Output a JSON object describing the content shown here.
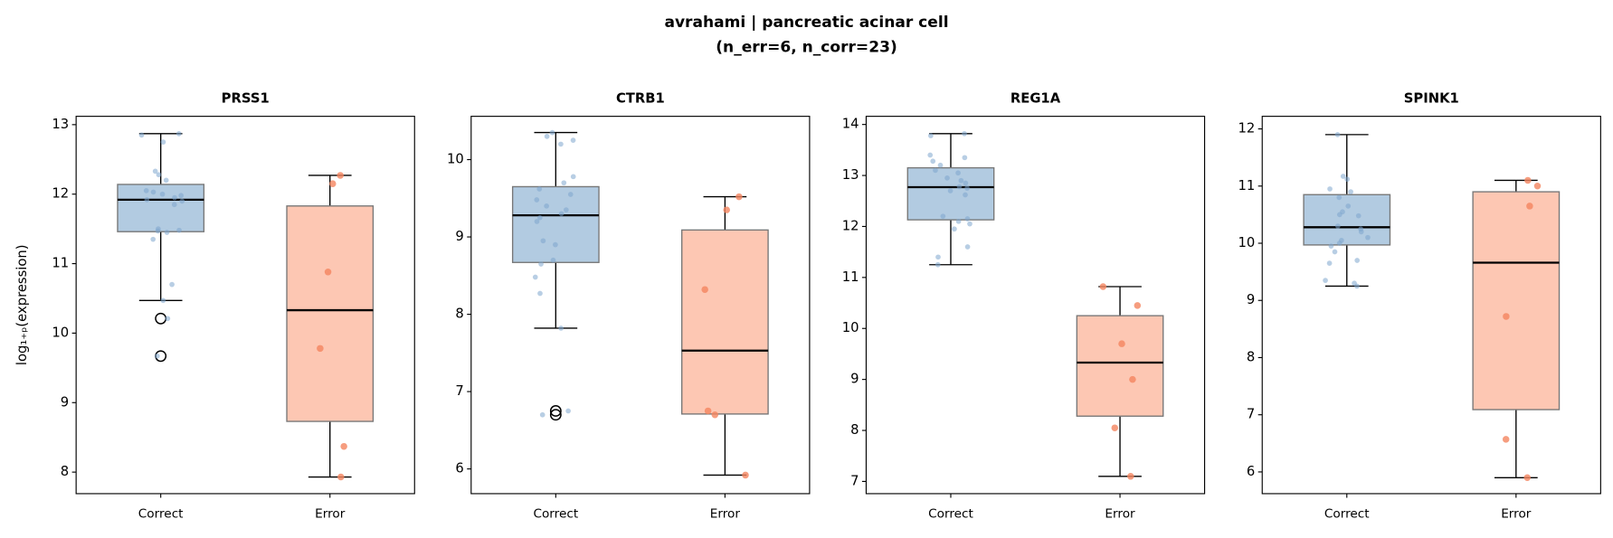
{
  "title": "avrahami | pancreatic acinar cell",
  "subtitle": "(n_err=6, n_corr=23)",
  "chart_data": [
    {
      "type": "box",
      "title": "PRSS1",
      "ylabel": "log₁₊ₚ(expression)",
      "categories": [
        "Correct",
        "Error"
      ],
      "colors": [
        "#b2cbe1",
        "#fdc7b3"
      ],
      "point_colors": [
        "#7ea6cd",
        "#f4845f"
      ],
      "ylim": [
        7.69,
        13.12
      ],
      "yticks": [
        8,
        9,
        10,
        11,
        12,
        13
      ],
      "boxes": [
        {
          "whislo": 10.47,
          "q1": 11.46,
          "med": 11.92,
          "q3": 12.14,
          "whishi": 12.87,
          "fliers": [
            10.21,
            9.67
          ],
          "points": [
            12.87,
            12.85,
            12.75,
            12.33,
            12.28,
            12.2,
            12.05,
            12.03,
            12.0,
            11.98,
            11.95,
            11.92,
            11.9,
            11.85,
            11.5,
            11.48,
            11.47,
            11.45,
            11.35,
            10.7,
            10.47,
            10.21,
            9.67
          ]
        },
        {
          "whislo": 7.93,
          "q1": 8.73,
          "med": 10.33,
          "q3": 11.83,
          "whishi": 12.27,
          "fliers": [],
          "points": [
            12.27,
            12.15,
            10.88,
            9.78,
            8.37,
            7.93
          ]
        }
      ]
    },
    {
      "type": "box",
      "title": "CTRB1",
      "categories": [
        "Correct",
        "Error"
      ],
      "colors": [
        "#b2cbe1",
        "#fdc7b3"
      ],
      "point_colors": [
        "#7ea6cd",
        "#f4845f"
      ],
      "ylim": [
        5.68,
        10.56
      ],
      "yticks": [
        6,
        7,
        8,
        9,
        10
      ],
      "boxes": [
        {
          "whislo": 7.82,
          "q1": 8.67,
          "med": 9.28,
          "q3": 9.65,
          "whishi": 10.35,
          "fliers": [
            6.75,
            6.7
          ],
          "points": [
            10.35,
            10.3,
            10.25,
            10.2,
            9.78,
            9.7,
            9.62,
            9.55,
            9.48,
            9.4,
            9.35,
            9.3,
            9.25,
            9.2,
            8.95,
            8.9,
            8.7,
            8.65,
            8.48,
            8.27,
            7.82,
            6.75,
            6.7
          ]
        },
        {
          "whislo": 5.92,
          "q1": 6.71,
          "med": 7.53,
          "q3": 9.09,
          "whishi": 9.52,
          "fliers": [],
          "points": [
            9.52,
            9.35,
            8.32,
            6.75,
            6.7,
            5.92
          ]
        }
      ]
    },
    {
      "type": "box",
      "title": "REG1A",
      "categories": [
        "Correct",
        "Error"
      ],
      "colors": [
        "#b2cbe1",
        "#fdc7b3"
      ],
      "point_colors": [
        "#7ea6cd",
        "#f4845f"
      ],
      "ylim": [
        6.76,
        14.16
      ],
      "yticks": [
        7,
        8,
        9,
        10,
        11,
        12,
        13,
        14
      ],
      "boxes": [
        {
          "whislo": 11.25,
          "q1": 12.13,
          "med": 12.77,
          "q3": 13.15,
          "whishi": 13.82,
          "fliers": [],
          "points": [
            13.82,
            13.78,
            13.4,
            13.35,
            13.28,
            13.2,
            13.1,
            13.05,
            12.95,
            12.9,
            12.85,
            12.78,
            12.75,
            12.7,
            12.62,
            12.2,
            12.15,
            12.1,
            12.05,
            11.95,
            11.6,
            11.4,
            11.25
          ]
        },
        {
          "whislo": 7.1,
          "q1": 8.28,
          "med": 9.33,
          "q3": 10.25,
          "whishi": 10.82,
          "fliers": [],
          "points": [
            10.82,
            10.45,
            9.7,
            9.0,
            8.05,
            7.1
          ]
        }
      ]
    },
    {
      "type": "box",
      "title": "SPINK1",
      "categories": [
        "Correct",
        "Error"
      ],
      "colors": [
        "#b2cbe1",
        "#fdc7b3"
      ],
      "point_colors": [
        "#7ea6cd",
        "#f4845f"
      ],
      "ylim": [
        5.62,
        12.22
      ],
      "yticks": [
        6,
        7,
        8,
        9,
        10,
        11,
        12
      ],
      "boxes": [
        {
          "whislo": 9.25,
          "q1": 9.97,
          "med": 10.28,
          "q3": 10.85,
          "whishi": 11.9,
          "fliers": [],
          "points": [
            11.9,
            11.17,
            11.12,
            10.95,
            10.9,
            10.8,
            10.65,
            10.55,
            10.5,
            10.48,
            10.3,
            10.25,
            10.2,
            10.1,
            10.05,
            10.0,
            9.95,
            9.85,
            9.7,
            9.65,
            9.35,
            9.3,
            9.25
          ]
        },
        {
          "whislo": 5.9,
          "q1": 7.09,
          "med": 9.66,
          "q3": 10.9,
          "whishi": 11.1,
          "fliers": [],
          "points": [
            11.1,
            11.0,
            10.65,
            8.72,
            6.57,
            5.9
          ]
        }
      ]
    }
  ]
}
